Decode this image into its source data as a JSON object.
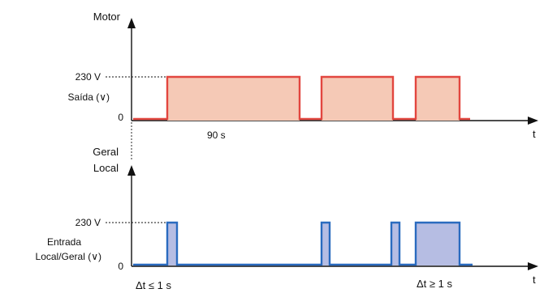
{
  "top_chart": {
    "y_axis_title": "Motor",
    "x_axis_label": "t",
    "level_label": "230 V",
    "zero_label": "0",
    "signal_label": "Saída (∨)",
    "duration_label": "90 s",
    "line_color": "#e2463f",
    "fill_color": "#f5c9b6"
  },
  "bottom_chart": {
    "y_axis_title_line1": "Geral",
    "y_axis_title_line2": "Local",
    "x_axis_label": "t",
    "level_label": "230 V",
    "zero_label": "0",
    "signal_label_line1": "Entrada",
    "signal_label_line2": "Local/Geral (∨)",
    "short_pulse_label": "Δt ≤ 1 s",
    "long_pulse_label": "Δt ≥ 1 s",
    "line_color": "#2a6bbf",
    "fill_color": "#b6bde3"
  }
}
